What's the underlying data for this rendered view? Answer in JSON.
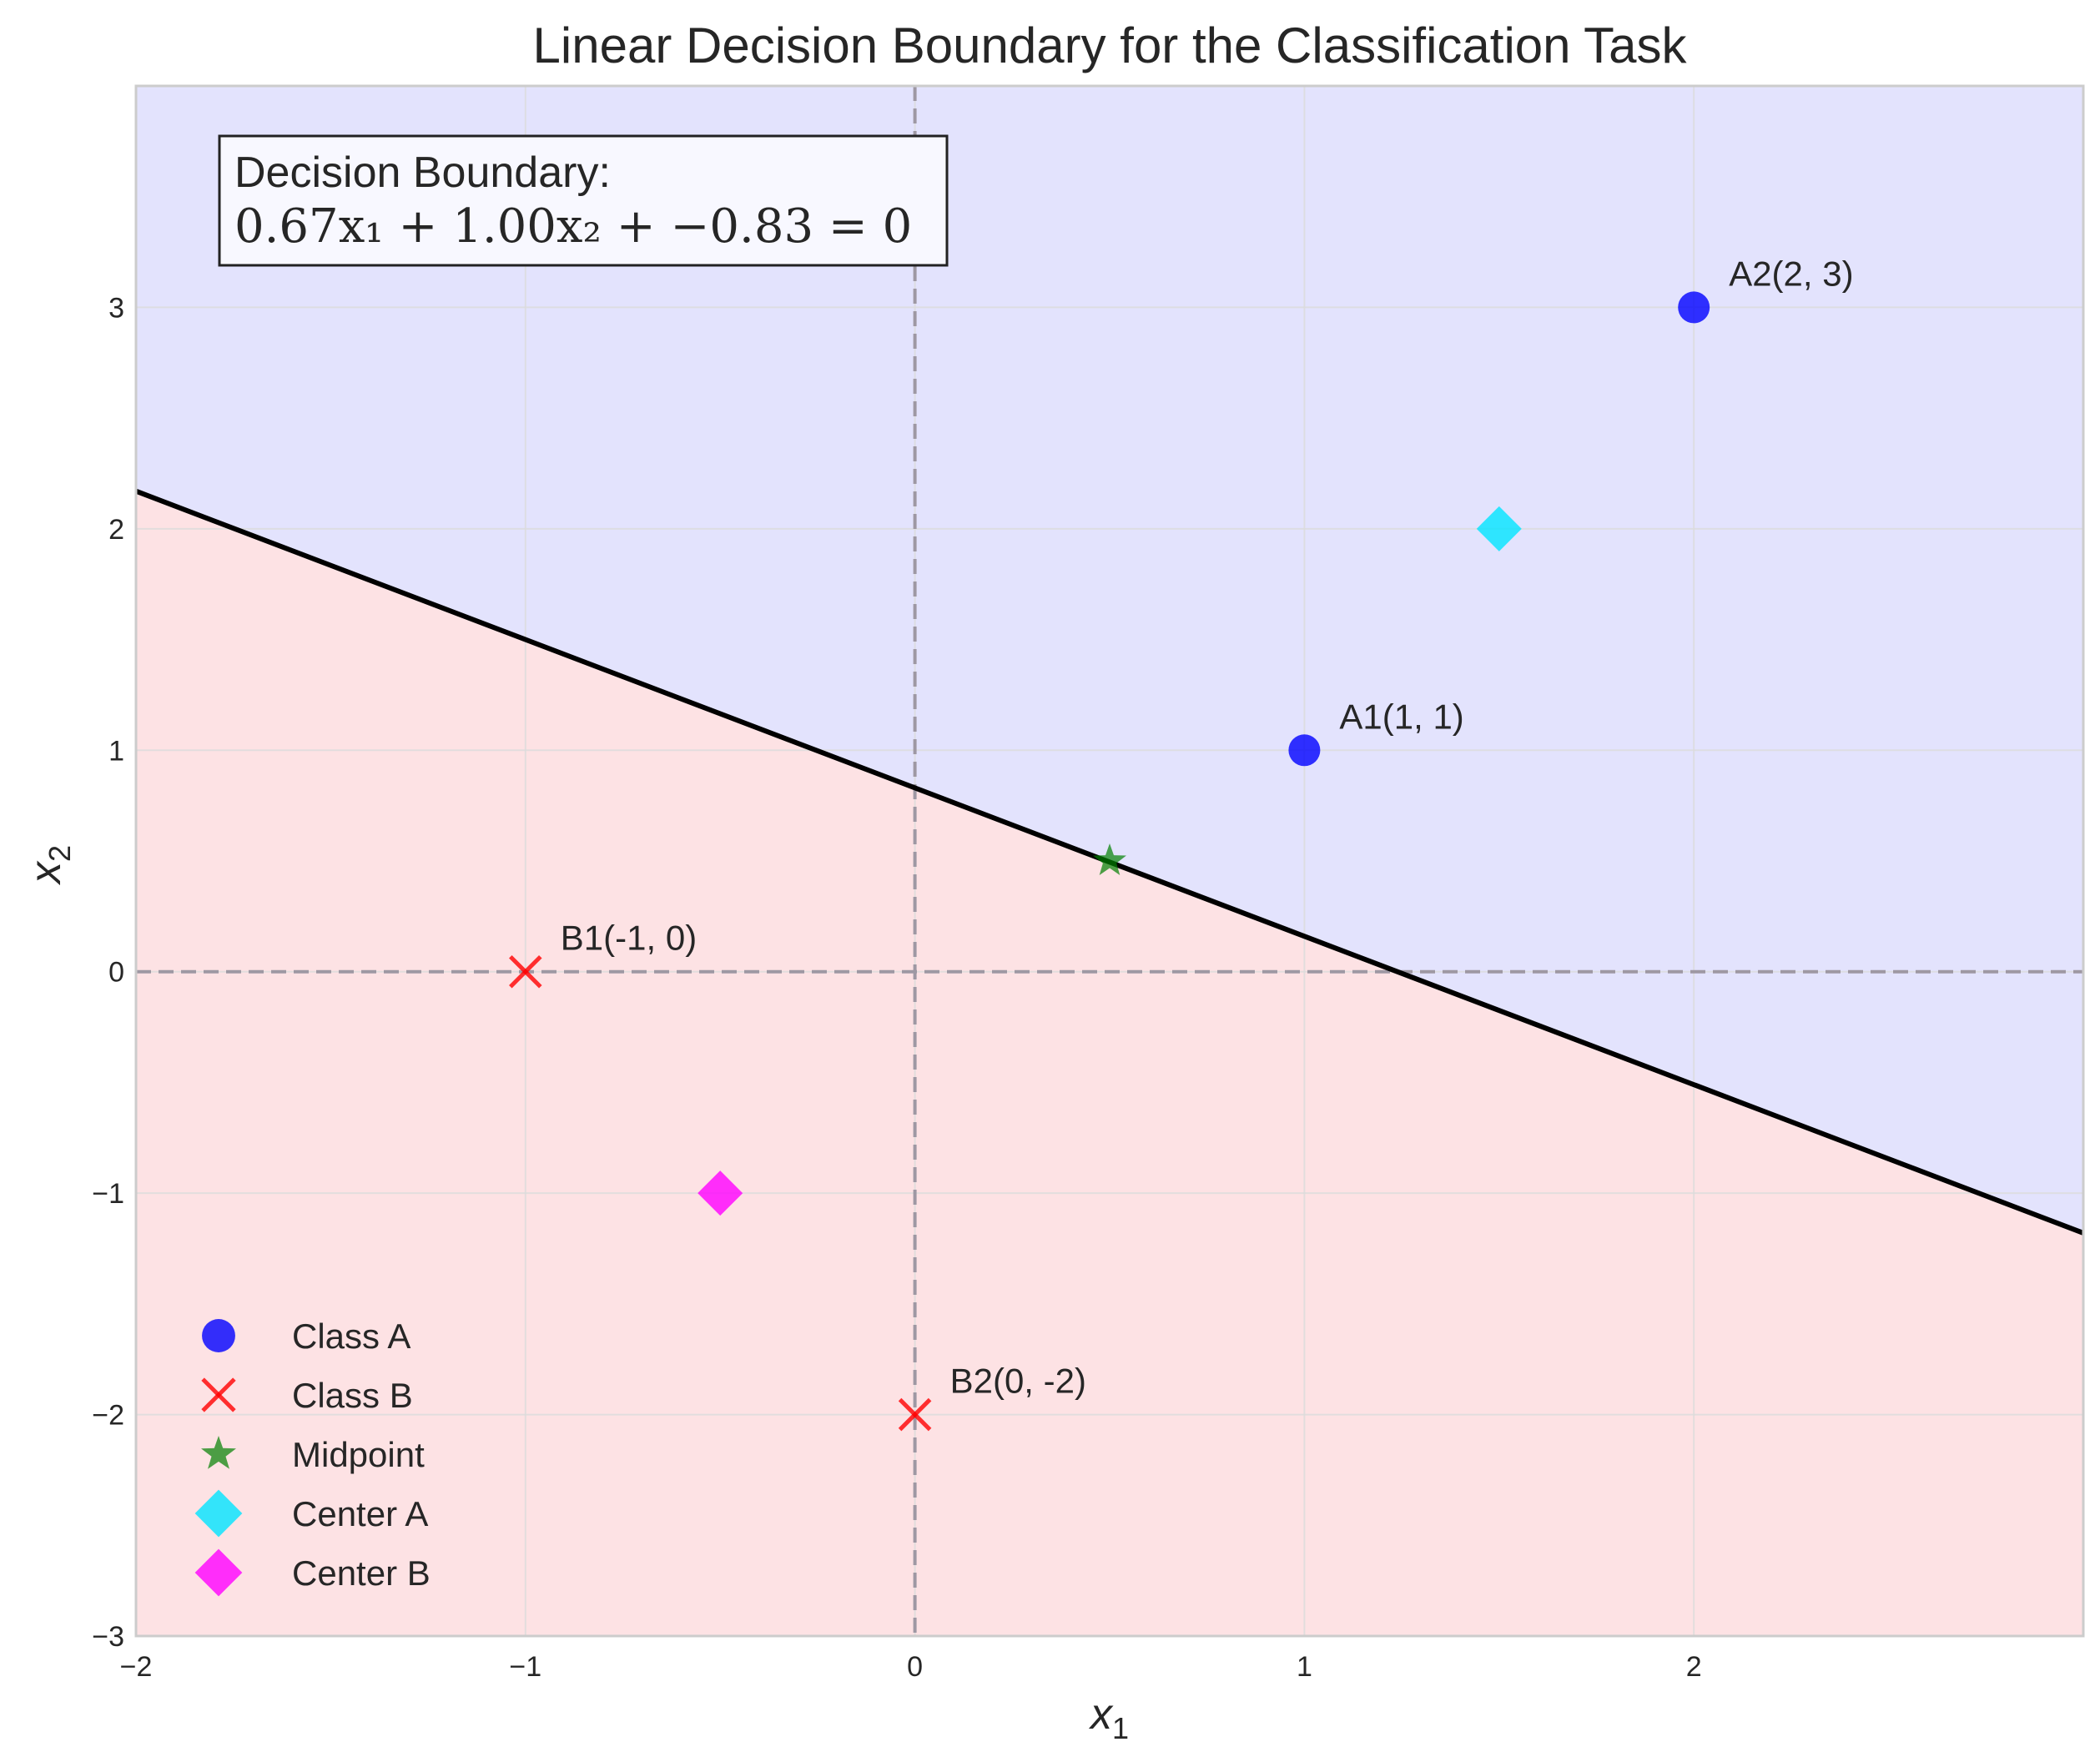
{
  "chart_data": {
    "type": "scatter",
    "title": "Linear Decision Boundary for the Classification Task",
    "xlabel": "x",
    "xlabel_sub": "1",
    "ylabel": "x",
    "ylabel_sub": "2",
    "xlim": [
      -2,
      3
    ],
    "ylim": [
      -3,
      4
    ],
    "x_ticks": [
      -2,
      -1,
      0,
      1,
      2
    ],
    "x_tick_labels": [
      "−2",
      "−1",
      "0",
      "1",
      "2"
    ],
    "y_ticks": [
      -3,
      -2,
      -1,
      0,
      1,
      2,
      3
    ],
    "y_tick_labels": [
      "−3",
      "−2",
      "−1",
      "0",
      "1",
      "2",
      "3"
    ],
    "grid": true,
    "legend_position": "lower-left",
    "decision_boundary": {
      "w1": 0.67,
      "w2": 1.0,
      "b": -0.83,
      "label_title": "Decision Boundary:",
      "label_equation": "0.67x₁ + 1.00x₂ + −0.83 = 0"
    },
    "regions": [
      {
        "name": "Class A region",
        "color": "#e3e3fd"
      },
      {
        "name": "Class B region",
        "color": "#fde2e4"
      }
    ],
    "reference_lines": [
      {
        "axis": "x",
        "value": 0,
        "style": "dashed",
        "color": "#9e98a3"
      },
      {
        "axis": "y",
        "value": 0,
        "style": "dashed",
        "color": "#9e98a3"
      }
    ],
    "series": [
      {
        "name": "Class A",
        "marker": "circle",
        "color": "#0000ff",
        "points": [
          {
            "x": 1,
            "y": 1,
            "label": "A1(1, 1)"
          },
          {
            "x": 2,
            "y": 3,
            "label": "A2(2, 3)"
          }
        ]
      },
      {
        "name": "Class B",
        "marker": "x",
        "color": "#ff0000",
        "points": [
          {
            "x": -1,
            "y": 0,
            "label": "B1(-1, 0)"
          },
          {
            "x": 0,
            "y": -2,
            "label": "B2(0, -2)"
          }
        ]
      },
      {
        "name": "Midpoint",
        "marker": "star",
        "color": "#008000",
        "points": [
          {
            "x": 0.5,
            "y": 0.5,
            "label": ""
          }
        ]
      },
      {
        "name": "Center A",
        "marker": "diamond",
        "color": "#00e5ff",
        "points": [
          {
            "x": 1.5,
            "y": 2,
            "label": ""
          }
        ]
      },
      {
        "name": "Center B",
        "marker": "diamond",
        "color": "#ff00ff",
        "points": [
          {
            "x": -0.5,
            "y": -1,
            "label": ""
          }
        ]
      }
    ]
  }
}
